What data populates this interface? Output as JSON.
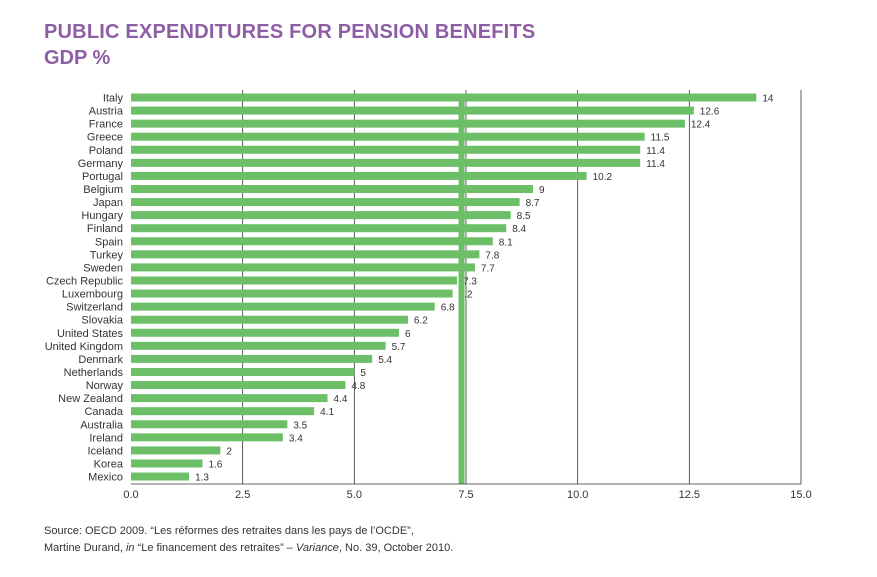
{
  "title": "PUBLIC EXPENDITURES FOR PENSION BENEFITS",
  "subtitle": "GDP %",
  "source": {
    "line1": "Source: OECD 2009. “Les réformes des retraites dans les pays de l’OCDE”,",
    "line2_a": "Martine Durand, ",
    "line2_b": "in",
    "line2_c": " “Le financement des retraites” – ",
    "line2_d": "Variance",
    "line2_e": ", No. 39, October 2010."
  },
  "colors": {
    "bar": "#6dbf67",
    "title": "#8e5ea5",
    "grid": "#333333",
    "reference_line": "#6dbf67"
  },
  "chart_data": {
    "type": "bar",
    "orientation": "horizontal",
    "categories": [
      "Italy",
      "Austria",
      "France",
      "Greece",
      "Poland",
      "Germany",
      "Portugal",
      "Belgium",
      "Japan",
      "Hungary",
      "Finland",
      "Spain",
      "Turkey",
      "Sweden",
      "Czech Republic",
      "Luxembourg",
      "Switzerland",
      "Slovakia",
      "United States",
      "United Kingdom",
      "Denmark",
      "Netherlands",
      "Norway",
      "New Zealand",
      "Canada",
      "Australia",
      "Ireland",
      "Iceland",
      "Korea",
      "Mexico"
    ],
    "values": [
      14,
      12.6,
      12.4,
      11.5,
      11.4,
      11.4,
      10.2,
      9,
      8.7,
      8.5,
      8.4,
      8.1,
      7.8,
      7.7,
      7.3,
      7.2,
      6.8,
      6.2,
      6,
      5.7,
      5.4,
      5,
      4.8,
      4.4,
      4.1,
      3.5,
      3.4,
      2,
      1.6,
      1.3
    ],
    "data_labels": [
      "14",
      "12.6",
      "12.4",
      "11.5",
      "11.4",
      "11.4",
      "10.2",
      "9",
      "8.7",
      "8.5",
      "8.4",
      "8.1",
      "7.8",
      "7.7",
      "7.3",
      "7.2",
      "6.8",
      "6.2",
      "6",
      "5.7",
      "5.4",
      "5",
      "4.8",
      "4.4",
      "4.1",
      "3.5",
      "3.4",
      "2",
      "1.6",
      "1.3"
    ],
    "x_ticks": [
      0,
      2.5,
      5,
      7.5,
      10,
      12.5,
      15
    ],
    "x_tick_labels": [
      "0.0",
      "2.5",
      "5.0",
      "7.5",
      "10.0",
      "12.5",
      "15.0"
    ],
    "xlim": [
      0,
      15
    ],
    "reference_line": 7.4,
    "grid": true,
    "xlabel": "",
    "ylabel": ""
  }
}
